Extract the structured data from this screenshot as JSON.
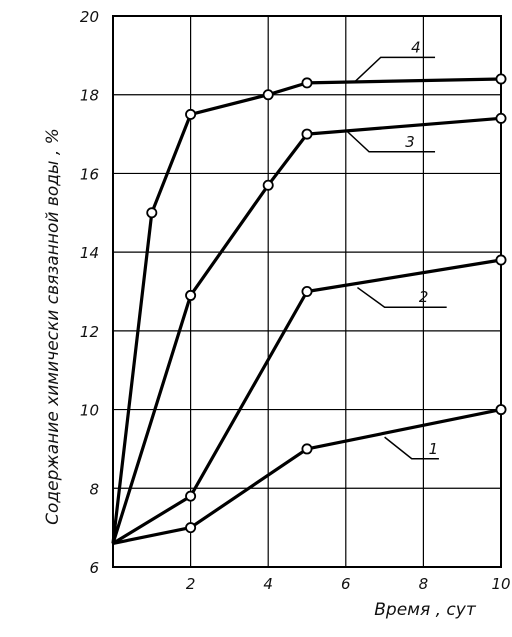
{
  "chart_data": {
    "type": "line",
    "title": "",
    "xlabel": "Время , сут",
    "ylabel": "Содержание химически связанной воды , %",
    "xlim": [
      0,
      10
    ],
    "ylim": [
      6,
      20
    ],
    "x_ticks": [
      "2",
      "4",
      "6",
      "8",
      "10"
    ],
    "y_ticks": [
      "6",
      "8",
      "10",
      "12",
      "14",
      "16",
      "18",
      "20"
    ],
    "grid": true,
    "legend": "none",
    "series": [
      {
        "name": "1",
        "x": [
          0,
          2,
          5,
          10
        ],
        "y": [
          6.6,
          7.0,
          9.0,
          10.0
        ],
        "markers": [
          false,
          true,
          true,
          true
        ]
      },
      {
        "name": "2",
        "x": [
          0,
          2,
          5,
          10
        ],
        "y": [
          6.6,
          7.8,
          13.0,
          13.8
        ],
        "markers": [
          false,
          true,
          true,
          true
        ]
      },
      {
        "name": "3",
        "x": [
          0,
          2,
          4,
          5,
          10
        ],
        "y": [
          6.6,
          12.9,
          15.7,
          17.0,
          17.4
        ],
        "markers": [
          false,
          true,
          true,
          true,
          true
        ]
      },
      {
        "name": "4",
        "x": [
          0,
          1,
          2,
          4,
          5,
          10
        ],
        "y": [
          6.6,
          15.0,
          17.5,
          18.0,
          18.3,
          18.4
        ],
        "markers": [
          false,
          true,
          true,
          true,
          true,
          true
        ]
      }
    ]
  }
}
